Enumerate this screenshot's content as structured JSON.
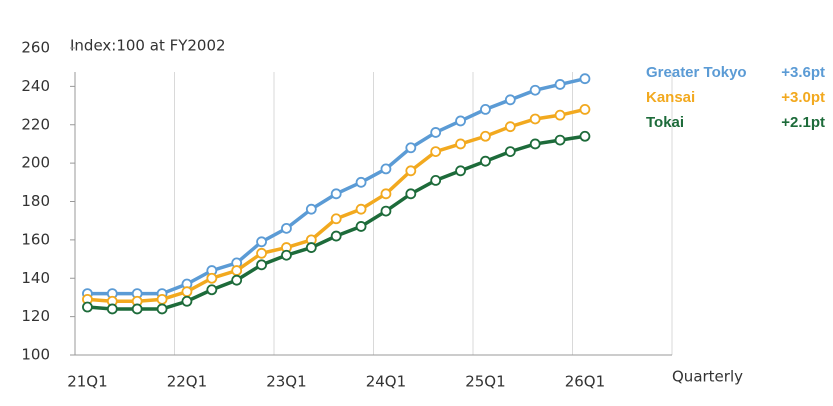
{
  "chart_data": {
    "type": "line",
    "title": "Index:100 at FY2002",
    "x_label": "Quarterly",
    "categories": [
      "21Q1",
      null,
      null,
      null,
      "22Q1",
      null,
      null,
      null,
      "23Q1",
      null,
      null,
      null,
      "24Q1",
      null,
      null,
      null,
      "25Q1",
      null,
      null,
      null,
      "26Q1"
    ],
    "series": [
      {
        "name": "Greater Tokyo",
        "annotation": "+3.6pt",
        "color": "#5b9bd5",
        "values": [
          132,
          132,
          132,
          132,
          137,
          144,
          148,
          159,
          166,
          176,
          184,
          190,
          197,
          208,
          216,
          222,
          228,
          233,
          238,
          241,
          244
        ]
      },
      {
        "name": "Kansai",
        "annotation": "+3.0pt",
        "color": "#f2a91f",
        "values": [
          129,
          128,
          128,
          129,
          133,
          140,
          144,
          153,
          156,
          160,
          171,
          176,
          184,
          196,
          206,
          210,
          214,
          219,
          223,
          225,
          228
        ]
      },
      {
        "name": "Tokai",
        "annotation": "+2.1pt",
        "color": "#1d6b3a",
        "values": [
          125,
          124,
          124,
          124,
          128,
          134,
          139,
          147,
          152,
          156,
          162,
          167,
          175,
          184,
          191,
          196,
          201,
          206,
          210,
          212,
          214
        ]
      }
    ],
    "ylim": [
      100,
      260
    ],
    "yticks": [
      100,
      120,
      140,
      160,
      180,
      200,
      220,
      240,
      260
    ],
    "grid": "x",
    "legend": "right"
  }
}
